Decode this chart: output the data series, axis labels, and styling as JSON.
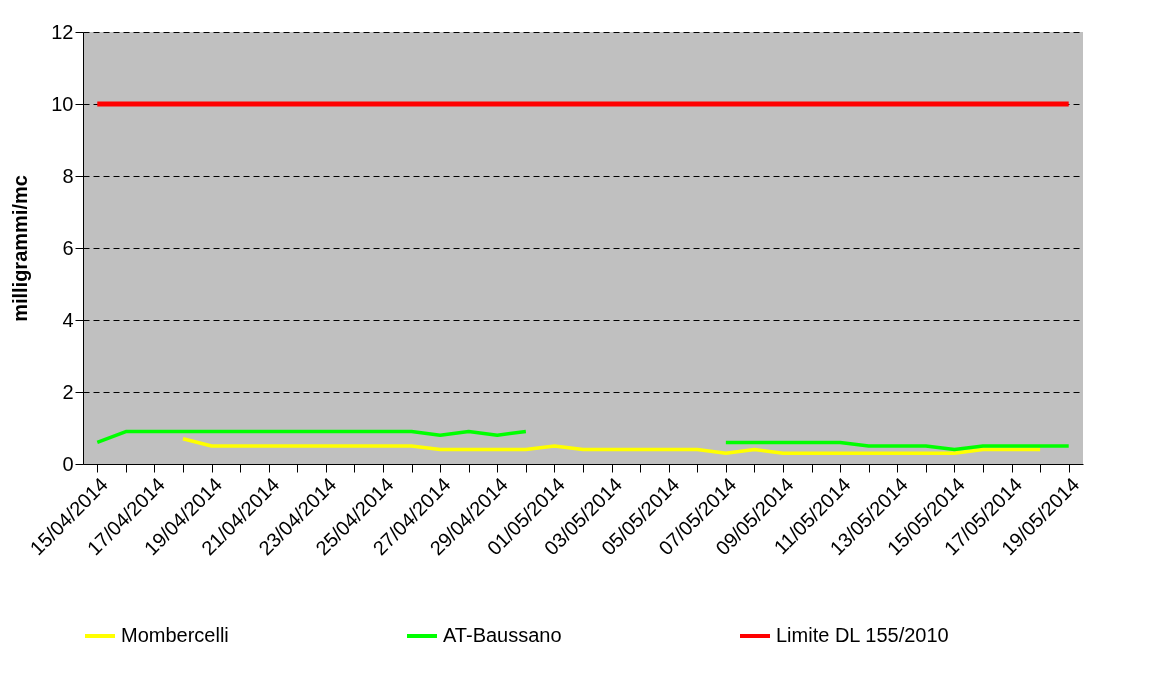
{
  "chart_data": {
    "type": "line",
    "ylabel": "milligrammi/mc",
    "categories": [
      "15/04/2014",
      null,
      "17/04/2014",
      null,
      "19/04/2014",
      null,
      "21/04/2014",
      null,
      "23/04/2014",
      null,
      "25/04/2014",
      null,
      "27/04/2014",
      null,
      "29/04/2014",
      null,
      "01/05/2014",
      null,
      "03/05/2014",
      null,
      "05/05/2014",
      null,
      "07/05/2014",
      null,
      "09/05/2014",
      null,
      "11/05/2014",
      null,
      "13/05/2014",
      null,
      "15/05/2014",
      null,
      "17/05/2014",
      null,
      "19/05/2014"
    ],
    "series": [
      {
        "name": "Mombercelli",
        "color": "#ffff00",
        "values": [
          null,
          null,
          null,
          0.7,
          0.5,
          0.5,
          0.5,
          0.5,
          0.5,
          0.5,
          0.5,
          0.5,
          0.4,
          0.4,
          0.4,
          0.4,
          0.5,
          0.4,
          0.4,
          0.4,
          0.4,
          0.4,
          0.3,
          0.4,
          0.3,
          0.3,
          0.3,
          0.3,
          0.3,
          0.3,
          0.3,
          0.4,
          0.4,
          0.4,
          null
        ]
      },
      {
        "name": "AT-Baussano",
        "color": "#00ff00",
        "values": [
          0.6,
          0.9,
          0.9,
          0.9,
          0.9,
          0.9,
          0.9,
          0.9,
          0.9,
          0.9,
          0.9,
          0.9,
          0.8,
          0.9,
          0.8,
          0.9,
          null,
          null,
          null,
          null,
          null,
          null,
          0.6,
          0.6,
          0.6,
          0.6,
          0.6,
          0.5,
          0.5,
          0.5,
          0.4,
          0.5,
          0.5,
          0.5,
          0.5
        ]
      },
      {
        "name": "Limite DL 155/2010",
        "color": "#ff0000",
        "values": [
          10,
          10,
          10,
          10,
          10,
          10,
          10,
          10,
          10,
          10,
          10,
          10,
          10,
          10,
          10,
          10,
          10,
          10,
          10,
          10,
          10,
          10,
          10,
          10,
          10,
          10,
          10,
          10,
          10,
          10,
          10,
          10,
          10,
          10,
          10
        ]
      }
    ],
    "ylim": [
      0,
      12
    ],
    "yticks": [
      0,
      2,
      4,
      6,
      8,
      10,
      12
    ],
    "grid": "y",
    "legend": "bottom"
  }
}
